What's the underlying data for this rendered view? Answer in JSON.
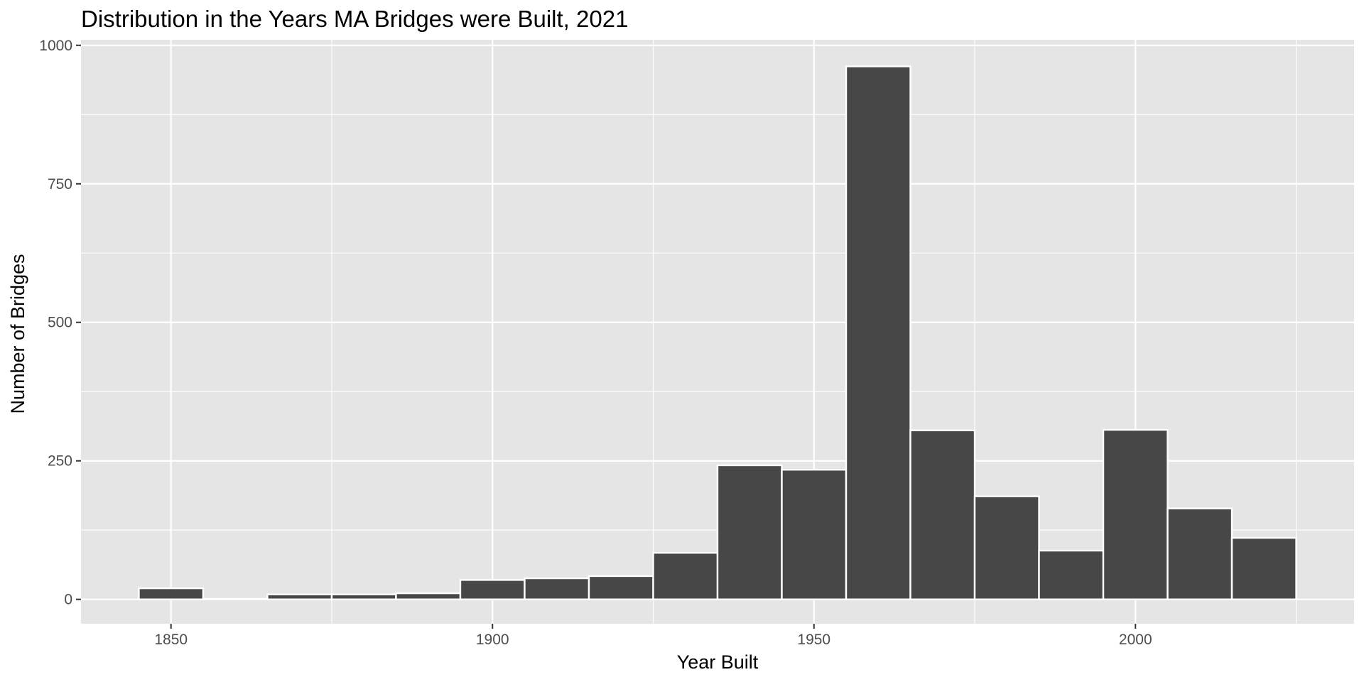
{
  "chart_data": {
    "type": "bar",
    "title": "Distribution in the Years MA Bridges were Built, 2021",
    "xlabel": "Year Built",
    "ylabel": "Number of Bridges",
    "bin_width": 10,
    "bins": [
      {
        "start": 1845,
        "end": 1855,
        "value": 20
      },
      {
        "start": 1855,
        "end": 1865,
        "value": 1
      },
      {
        "start": 1865,
        "end": 1875,
        "value": 9
      },
      {
        "start": 1875,
        "end": 1885,
        "value": 9
      },
      {
        "start": 1885,
        "end": 1895,
        "value": 11
      },
      {
        "start": 1895,
        "end": 1905,
        "value": 35
      },
      {
        "start": 1905,
        "end": 1915,
        "value": 38
      },
      {
        "start": 1915,
        "end": 1925,
        "value": 42
      },
      {
        "start": 1925,
        "end": 1935,
        "value": 84
      },
      {
        "start": 1935,
        "end": 1945,
        "value": 242
      },
      {
        "start": 1945,
        "end": 1955,
        "value": 234
      },
      {
        "start": 1955,
        "end": 1965,
        "value": 962
      },
      {
        "start": 1965,
        "end": 1975,
        "value": 305
      },
      {
        "start": 1975,
        "end": 1985,
        "value": 186
      },
      {
        "start": 1985,
        "end": 1995,
        "value": 88
      },
      {
        "start": 1995,
        "end": 2005,
        "value": 306
      },
      {
        "start": 2005,
        "end": 2015,
        "value": 164
      },
      {
        "start": 2015,
        "end": 2025,
        "value": 111
      }
    ],
    "xlim": [
      1836,
      2034
    ],
    "ylim": [
      -44,
      1010
    ],
    "xticks": [
      1850,
      1900,
      1950,
      2000
    ],
    "xtick_labels": [
      "1850",
      "1900",
      "1950",
      "2000"
    ],
    "yticks": [
      0,
      250,
      500,
      750,
      1000
    ],
    "ytick_labels": [
      "0",
      "250",
      "500",
      "750",
      "1000"
    ],
    "grid": true,
    "colors": {
      "panel_background": "#e5e5e5",
      "grid": "#ffffff",
      "bar_fill": "#474747",
      "bar_outline": "#ffffff",
      "tick_text": "#4d4d4d",
      "tick_mark": "#333333"
    }
  }
}
